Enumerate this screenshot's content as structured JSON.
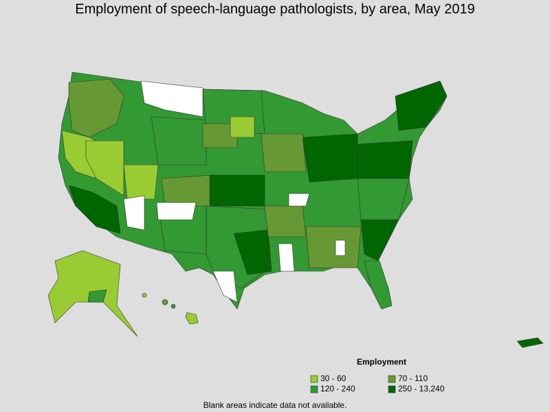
{
  "title": "Employment of speech-language pathologists, by area, May 2019",
  "legend": {
    "title": "Employment",
    "items": [
      {
        "label": "30 - 60",
        "color": "#99cc33"
      },
      {
        "label": "70 - 110",
        "color": "#669933"
      },
      {
        "label": "120 - 240",
        "color": "#339933"
      },
      {
        "label": "250 - 13,240",
        "color": "#006600"
      }
    ]
  },
  "footnote": "Blank areas indicate data not available."
}
